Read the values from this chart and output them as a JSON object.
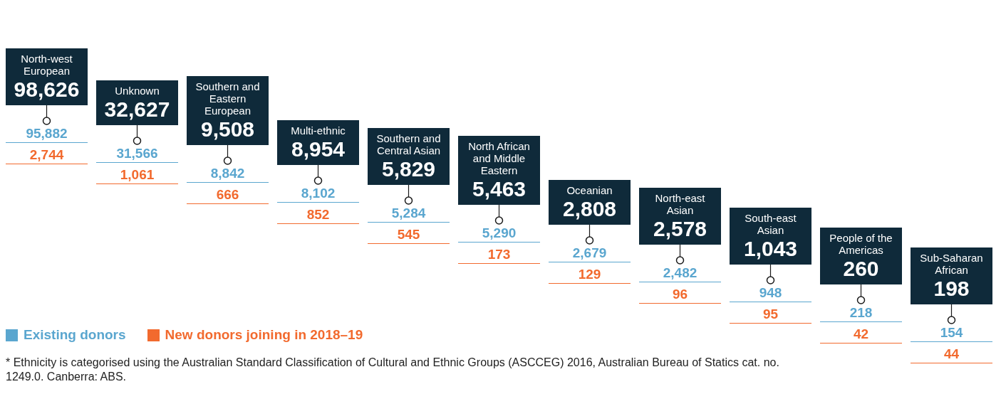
{
  "chart_data": {
    "type": "other",
    "categories": [
      "North-west European",
      "Unknown",
      "Southern and Eastern European",
      "Multi-ethnic",
      "Southern and Central Asian",
      "North African and Middle Eastern",
      "Oceanian",
      "North-east Asian",
      "South-east Asian",
      "People of the Americas",
      "Sub-Saharan African"
    ],
    "series": [
      {
        "color": "#0f2a3a",
        "values": [
          98626,
          32627,
          9508,
          8954,
          5829,
          5463,
          2808,
          2578,
          1043,
          260,
          198
        ],
        "value_labels": [
          "98,626",
          "32,627",
          "9,508",
          "8,954",
          "5,829",
          "5,463",
          "2,808",
          "2,578",
          "1,043",
          "260",
          "198"
        ]
      },
      {
        "name": "Existing donors",
        "color": "#5aa6cf",
        "values": [
          95882,
          31566,
          8842,
          8102,
          5284,
          5290,
          2679,
          2482,
          948,
          218,
          154
        ],
        "value_labels": [
          "95,882",
          "31,566",
          "8,842",
          "8,102",
          "5,284",
          "5,290",
          "2,679",
          "2,482",
          "948",
          "218",
          "154"
        ]
      },
      {
        "name": "New donors joining in 2018–19",
        "color": "#f26a2e",
        "values": [
          2744,
          1061,
          666,
          852,
          545,
          173,
          129,
          96,
          95,
          42,
          44
        ],
        "value_labels": [
          "2,744",
          "1,061",
          "666",
          "852",
          "545",
          "173",
          "129",
          "96",
          "95",
          "42",
          "44"
        ]
      }
    ],
    "data_labels": true,
    "legend": "bottom left",
    "annotations": [
      "*  Ethnicity is categorised using the Australian Standard Classification of Cultural and Ethnic Groups (ASCCEG) 2016, Australian Bureau of Statics cat. no. 1249.0. Canberra: ABS."
    ]
  }
}
